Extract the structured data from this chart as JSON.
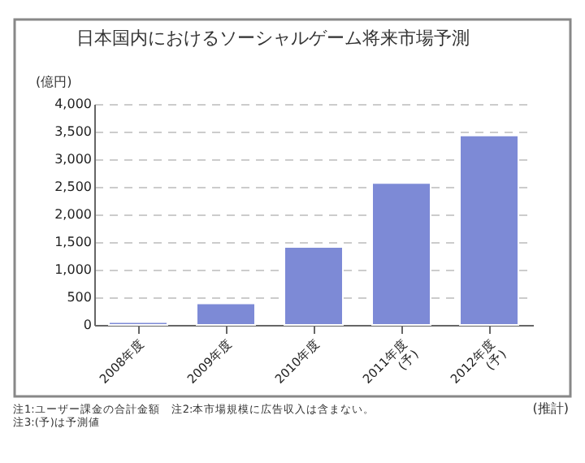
{
  "chart_data": {
    "type": "bar",
    "title": "日本国内におけるソーシャルゲーム将来市場予測",
    "ylabel": "(億円)",
    "categories": [
      "2008年度",
      "2009年度",
      "2010年度",
      "2011年度\n(予)",
      "2012年度\n(予)"
    ],
    "values": [
      50,
      390,
      1410,
      2570,
      3430
    ],
    "color": "#7d8ad6",
    "ylim": [
      0,
      4000
    ],
    "yticks": [
      {
        "value": 0,
        "label": "0"
      },
      {
        "value": 500,
        "label": "500"
      },
      {
        "value": 1000,
        "label": "1,000"
      },
      {
        "value": 1500,
        "label": "1,500"
      },
      {
        "value": 2000,
        "label": "2,000"
      },
      {
        "value": 2500,
        "label": "2,500"
      },
      {
        "value": 3000,
        "label": "3,000"
      },
      {
        "value": 3500,
        "label": "3,500"
      },
      {
        "value": 4000,
        "label": "4,000"
      }
    ],
    "grid": "y",
    "annotations": [
      "注1:ユーザー課金の合計金額　注2:本市場規模に広告収入は含まない。",
      "注3:(予)は予測値",
      "(推計)"
    ]
  }
}
